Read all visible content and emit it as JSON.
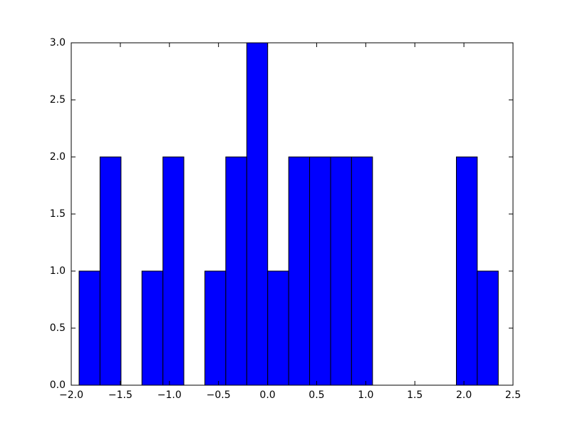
{
  "chart_data": {
    "type": "histogram",
    "bins": [
      -1.92,
      -1.707,
      -1.493,
      -1.28,
      -1.066,
      -0.853,
      -0.639,
      -0.426,
      -0.212,
      0.001,
      0.215,
      0.428,
      0.642,
      0.855,
      1.069,
      1.282,
      1.496,
      1.709,
      1.923,
      2.136,
      2.35
    ],
    "values": [
      1,
      2,
      0,
      1,
      2,
      0,
      1,
      2,
      3,
      1,
      2,
      2,
      2,
      2,
      0,
      0,
      0,
      0,
      2,
      1
    ],
    "color": "#0000ff",
    "xlim": [
      -2.0,
      2.5
    ],
    "xticks": [
      {
        "value": -2.0,
        "label": "−2.0"
      },
      {
        "value": -1.5,
        "label": "−1.5"
      },
      {
        "value": -1.0,
        "label": "−1.0"
      },
      {
        "value": -0.5,
        "label": "−0.5"
      },
      {
        "value": 0.0,
        "label": "0.0"
      },
      {
        "value": 0.5,
        "label": "0.5"
      },
      {
        "value": 1.0,
        "label": "1.0"
      },
      {
        "value": 1.5,
        "label": "1.5"
      },
      {
        "value": 2.0,
        "label": "2.0"
      },
      {
        "value": 2.5,
        "label": "2.5"
      }
    ],
    "ylim": [
      0,
      3.0
    ],
    "yticks": [
      {
        "value": 0.0,
        "label": "0.0"
      },
      {
        "value": 0.5,
        "label": "0.5"
      },
      {
        "value": 1.0,
        "label": "1.0"
      },
      {
        "value": 1.5,
        "label": "1.5"
      },
      {
        "value": 2.0,
        "label": "2.0"
      },
      {
        "value": 2.5,
        "label": "2.5"
      },
      {
        "value": 3.0,
        "label": "3.0"
      }
    ],
    "grid": false
  }
}
